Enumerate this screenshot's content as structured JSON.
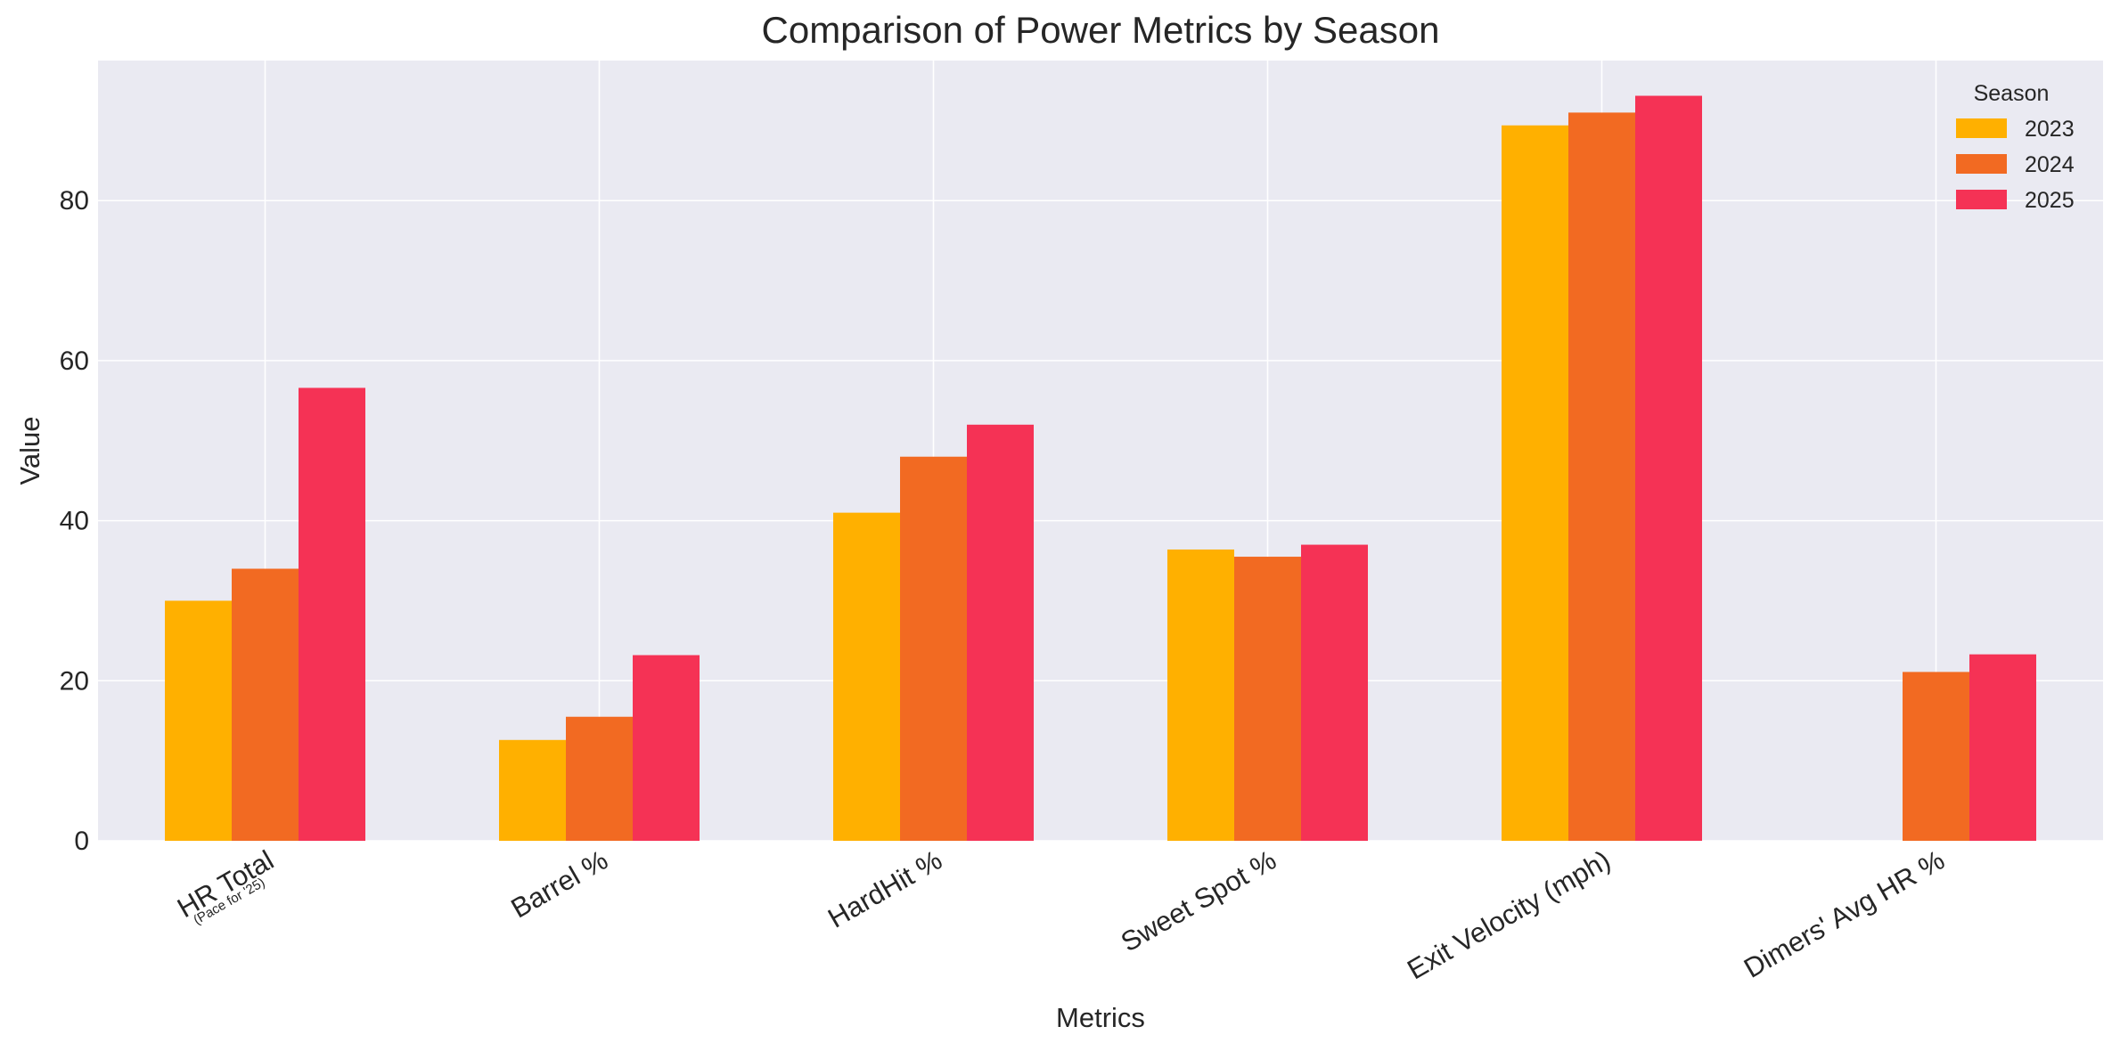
{
  "chart_data": {
    "type": "bar",
    "title": "Comparison of Power Metrics by Season",
    "xlabel": "Metrics",
    "ylabel": "Value",
    "ylim": [
      0,
      97.5
    ],
    "yticks": [
      0,
      20,
      40,
      60,
      80
    ],
    "grid": true,
    "categories": [
      {
        "label": "HR Total",
        "sublabel": "(Pace for '25)"
      },
      {
        "label": "Barrel %",
        "sublabel": ""
      },
      {
        "label": "HardHit %",
        "sublabel": ""
      },
      {
        "label": "Sweet Spot %",
        "sublabel": ""
      },
      {
        "label": "Exit Velocity (mph)",
        "sublabel": ""
      },
      {
        "label": "Dimers' Avg HR %",
        "sublabel": ""
      }
    ],
    "series": [
      {
        "name": "2023",
        "color": "#FFB000",
        "values": [
          30,
          12.6,
          41,
          36.4,
          89.4,
          null
        ]
      },
      {
        "name": "2024",
        "color": "#F26A22",
        "values": [
          34,
          15.5,
          48,
          35.5,
          91,
          21.1
        ]
      },
      {
        "name": "2025",
        "color": "#F53255",
        "values": [
          56.6,
          23.2,
          52,
          37,
          93.1,
          23.3
        ]
      }
    ],
    "legend": {
      "title": "Season",
      "position": "top-right"
    },
    "colors": {
      "plot_background": "#EAEAF2",
      "grid": "#FFFFFF"
    }
  }
}
